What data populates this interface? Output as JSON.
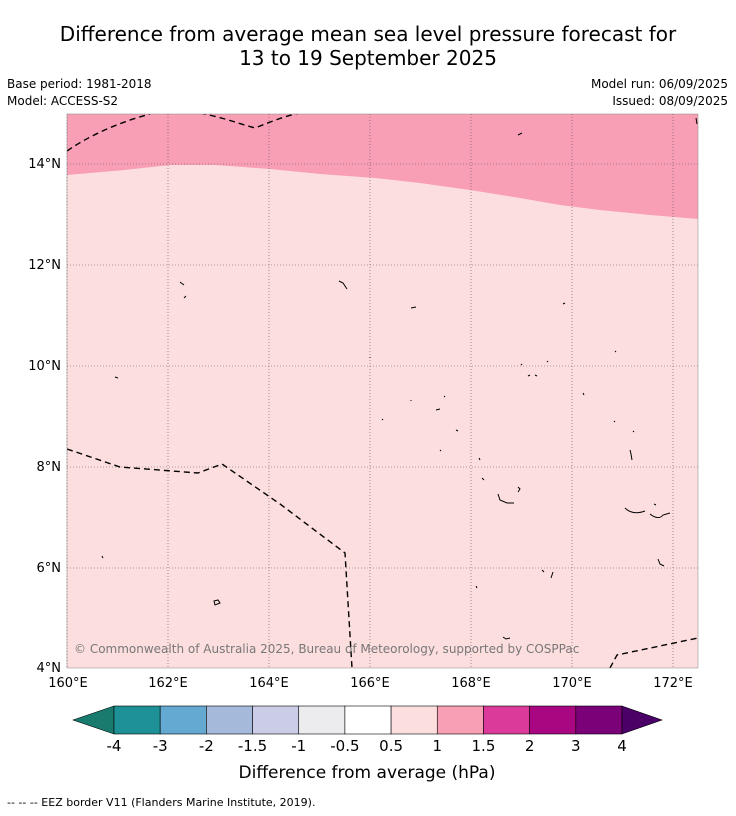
{
  "title_line1": "Difference from average mean sea level pressure forecast for",
  "title_line2": "13 to 19 September 2025",
  "base_period": "Base period: 1981-2018",
  "model": "Model: ACCESS-S2",
  "model_run": "Model run: 06/09/2025",
  "issued": "Issued: 08/09/2025",
  "copyright": "© Commonwealth of Australia 2025, Bureau of Meteorology, supported by COSPPac",
  "lat_labels": [
    "14°N",
    "12°N",
    "10°N",
    "8°N",
    "6°N",
    "4°N"
  ],
  "lon_labels": [
    "160°E",
    "162°E",
    "164°E",
    "166°E",
    "168°E",
    "170°E",
    "172°E"
  ],
  "colorbar": {
    "ticks": [
      "-4",
      "-3",
      "-2",
      "-1.5",
      "-1",
      "-0.5",
      "0.5",
      "1",
      "1.5",
      "2",
      "3",
      "4"
    ],
    "colors": [
      "#197a6e",
      "#1e9196",
      "#64a9d2",
      "#a5b9da",
      "#cbcde6",
      "#ececef",
      "#ffffff",
      "#fddede",
      "#f99fb5",
      "#db3a9a",
      "#a90681",
      "#7a0177",
      "#4b0068"
    ],
    "label": "Difference from average (hPa)"
  },
  "legend_note": "--  --  -- EEZ border V11 (Flanders Marine Institute, 2019).",
  "fill_colors": {
    "band_1_to_1_5": "#f99fb5",
    "band_0_5_to_1": "#fddede"
  }
}
